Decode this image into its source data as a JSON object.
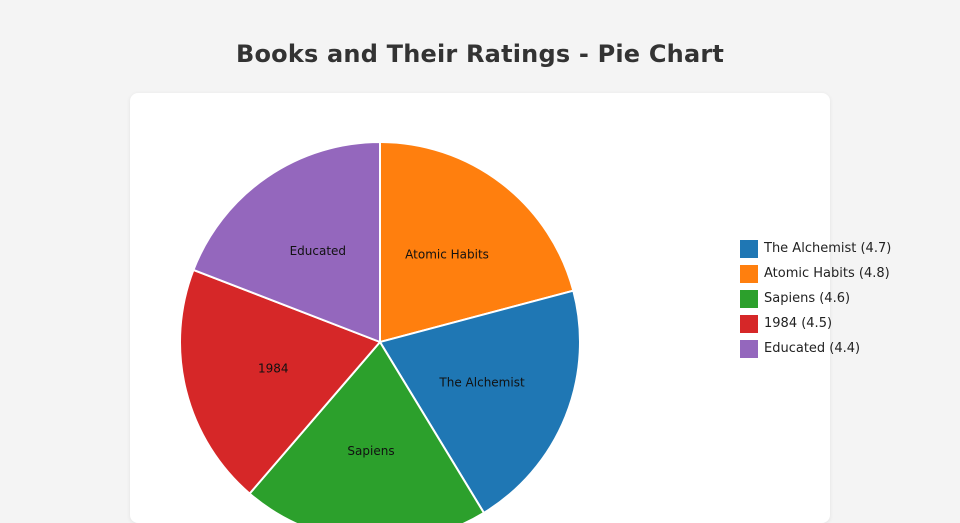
{
  "page": {
    "title": "Books and Their Ratings - Pie Chart"
  },
  "chart_data": {
    "type": "pie",
    "title": "Books and Their Ratings - Pie Chart",
    "categories": [
      "The Alchemist",
      "Atomic Habits",
      "Sapiens",
      "1984",
      "Educated"
    ],
    "values": [
      4.7,
      4.8,
      4.6,
      4.5,
      4.4
    ],
    "colors": [
      "#1f77b4",
      "#ff7f0e",
      "#2ca02c",
      "#d62728",
      "#9467bd"
    ],
    "legend": {
      "position": "right",
      "entries": [
        "The Alchemist (4.7)",
        "Atomic Habits (4.8)",
        "Sapiens (4.6)",
        "1984 (4.5)",
        "Educated (4.4)"
      ]
    },
    "start_angle_deg": 0,
    "direction": "clockwise-from-top, order: Atomic Habits, The Alchemist, Sapiens, 1984, Educated"
  }
}
